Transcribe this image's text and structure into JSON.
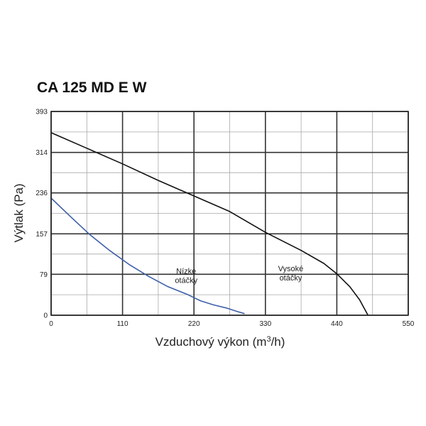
{
  "chart_data": {
    "type": "line",
    "title": "CA 125 MD E W",
    "xlabel": "Vzduchový výkon (m",
    "xlabel_sup": "3",
    "xlabel_end": "/h)",
    "ylabel": "Výtlak (Pa)",
    "xlim": [
      0,
      550
    ],
    "ylim": [
      0,
      393
    ],
    "x_ticks": [
      0,
      110,
      220,
      330,
      440,
      550
    ],
    "y_ticks": [
      0,
      79,
      157,
      236,
      314,
      393
    ],
    "x_tick_labels": [
      "0",
      "110",
      "220",
      "330",
      "440",
      "550"
    ],
    "y_tick_labels": [
      "0",
      "79",
      "157",
      "236",
      "314",
      "393"
    ],
    "grid": true,
    "series": [
      {
        "name": "Vysoké otáčky",
        "color": "#111111",
        "x": [
          0,
          55,
          110,
          165,
          220,
          275,
          330,
          385,
          420,
          440,
          460,
          475,
          488
        ],
        "y": [
          352,
          322,
          292,
          260,
          230,
          200,
          160,
          125,
          100,
          80,
          55,
          30,
          0
        ]
      },
      {
        "name": "Nízke otáčky",
        "color": "#3f5fa8",
        "x": [
          0,
          30,
          60,
          90,
          120,
          150,
          180,
          210,
          230,
          250,
          270,
          285,
          298
        ],
        "y": [
          226,
          190,
          155,
          125,
          98,
          75,
          55,
          40,
          28,
          20,
          14,
          8,
          3
        ]
      }
    ],
    "annotations": [
      {
        "lines": [
          "Nízke",
          "otáčky"
        ],
        "x": 208,
        "y": 80
      },
      {
        "lines": [
          "Vysoké",
          "otáčky"
        ],
        "x": 369,
        "y": 85
      }
    ]
  }
}
